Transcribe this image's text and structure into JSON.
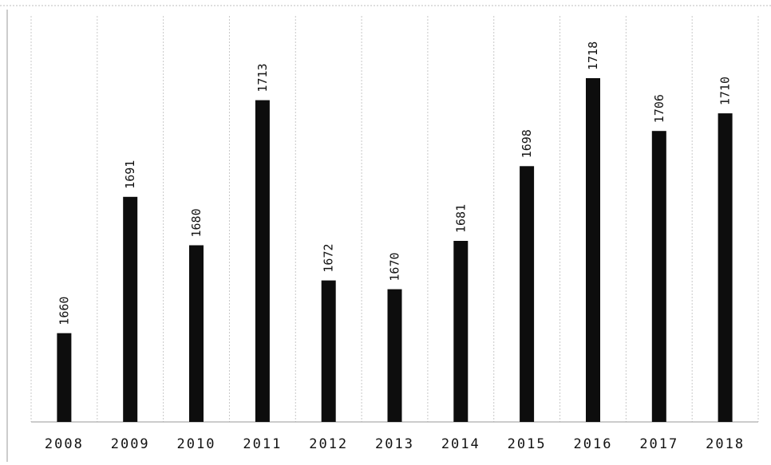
{
  "chart_data": {
    "type": "bar",
    "categories": [
      "2008",
      "2009",
      "2010",
      "2011",
      "2012",
      "2013",
      "2014",
      "2015",
      "2016",
      "2017",
      "2018"
    ],
    "values": [
      1660,
      1691,
      1680,
      1713,
      1672,
      1670,
      1681,
      1698,
      1718,
      1706,
      1710
    ],
    "data_labels": [
      "1660",
      "1691",
      "1680",
      "1713",
      "1672",
      "1670",
      "1681",
      "1698",
      "1718",
      "1706",
      "1710"
    ],
    "title": "",
    "xlabel": "",
    "ylabel": "",
    "ylim": [
      1640,
      1725
    ],
    "grid": "vertical",
    "legend": "none",
    "colors": {
      "bar": "#0d0d0d",
      "grid": "#c8c8c8",
      "frame": "#b5b5b5",
      "text": "#111111"
    }
  }
}
